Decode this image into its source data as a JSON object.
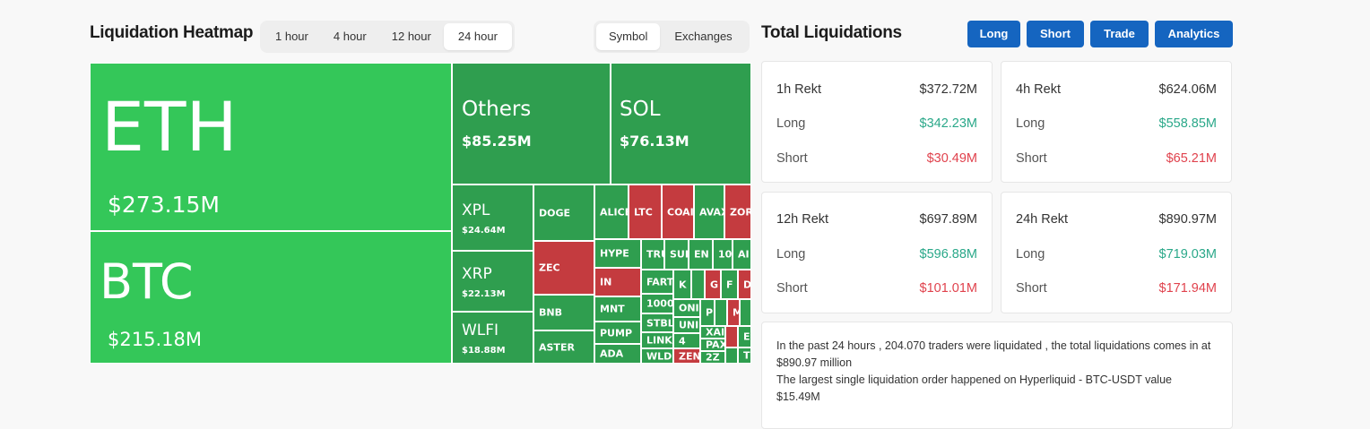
{
  "heatmap": {
    "title": "Liquidation Heatmap",
    "time_tabs": [
      {
        "label": "1 hour",
        "active": false
      },
      {
        "label": "4 hour",
        "active": false
      },
      {
        "label": "12 hour",
        "active": false
      },
      {
        "label": "24 hour",
        "active": true
      }
    ],
    "view_tabs": [
      {
        "label": "Symbol",
        "active": true
      },
      {
        "label": "Exchanges",
        "active": false
      }
    ],
    "cells": {
      "eth": {
        "symbol": "ETH",
        "value": "$273.15M"
      },
      "btc": {
        "symbol": "BTC",
        "value": "$215.18M"
      },
      "others": {
        "symbol": "Others",
        "value": "$85.25M"
      },
      "sol": {
        "symbol": "SOL",
        "value": "$76.13M"
      },
      "xpl": {
        "symbol": "XPL",
        "value": "$24.64M"
      },
      "xrp": {
        "symbol": "XRP",
        "value": "$22.13M"
      },
      "wlfi": {
        "symbol": "WLFI",
        "value": "$18.88M"
      },
      "doge": "DOGE",
      "zec": "ZEC",
      "bnb": "BNB",
      "aster": "ASTER",
      "alice": "ALICE",
      "ltc": "LTC",
      "coai": "COAI",
      "avax": "AVAX",
      "zora": "ZORA",
      "hype": "HYPE",
      "in": "IN",
      "mnt": "MNT",
      "pump": "PUMP",
      "ada": "ADA",
      "tru": "TRU",
      "sui": "SUI",
      "en": "EN",
      "n100": "100",
      "ai": "AI",
      "fart": "FART",
      "k": "K",
      "g": "G",
      "f": "F",
      "d": "D",
      "n1000": "1000",
      "on": "ONI",
      "p": "P",
      "m": "M",
      "stbl": "STBL",
      "uni": "UNI",
      "n4": "4",
      "link": "LINK",
      "xa": "XAI",
      "pax": "PAX",
      "wld": "WLD",
      "zen": "ZEN",
      "zz": "2Z",
      "e": "E",
      "t": "T"
    }
  },
  "liquidations": {
    "title": "Total Liquidations",
    "buttons": [
      "Long",
      "Short",
      "Trade",
      "Analytics"
    ],
    "cards": [
      {
        "label": "1h Rekt",
        "total": "$372.72M",
        "long_label": "Long",
        "long": "$342.23M",
        "short_label": "Short",
        "short": "$30.49M"
      },
      {
        "label": "4h Rekt",
        "total": "$624.06M",
        "long_label": "Long",
        "long": "$558.85M",
        "short_label": "Short",
        "short": "$65.21M"
      },
      {
        "label": "12h Rekt",
        "total": "$697.89M",
        "long_label": "Long",
        "long": "$596.88M",
        "short_label": "Short",
        "short": "$101.01M"
      },
      {
        "label": "24h Rekt",
        "total": "$890.97M",
        "long_label": "Long",
        "long": "$719.03M",
        "short_label": "Short",
        "short": "$171.94M"
      }
    ],
    "summary_line1": "In the past 24 hours , 204.070 traders were liquidated , the total liquidations comes in at $890.97 million",
    "summary_line2": "The largest single liquidation order happened on Hyperliquid - BTC-USDT value $15.49M"
  },
  "colors": {
    "green_large": "#34c759",
    "green": "#2f9e4f",
    "red": "#c43b3f",
    "button_blue": "#1565c0",
    "long_text": "#2aa889",
    "short_text": "#e0424d"
  }
}
